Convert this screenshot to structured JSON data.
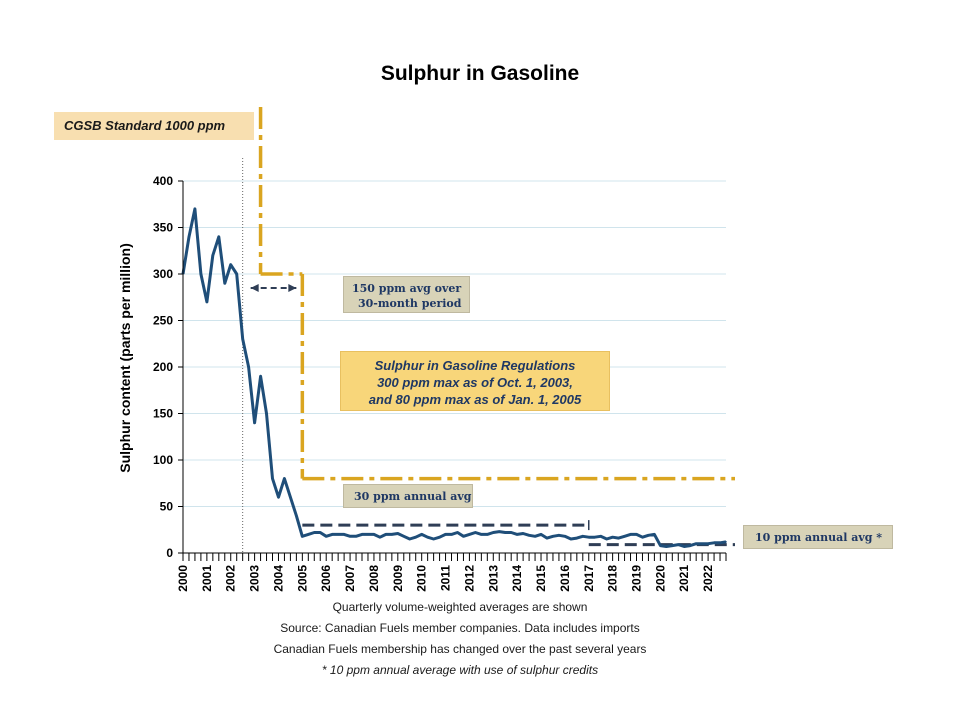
{
  "title": "Sulphur in Gasoline",
  "annotations": {
    "standard": "CGSB Standard 1000 ppm",
    "box150_line1": "150 ppm avg over",
    "box150_line2": "30-month period",
    "regs_line1": "Sulphur in Gasoline Regulations",
    "regs_line2": "300 ppm max as of Oct. 1, 2003,",
    "regs_line3": "and 80 ppm max as of Jan. 1, 2005",
    "avg30": "30 ppm annual avg",
    "avg10": "10 ppm annual avg *"
  },
  "notes": {
    "line1": "Quarterly volume-weighted  averages are shown",
    "line2": "Source: Canadian Fuels member companies. Data includes imports",
    "line3": "Canadian Fuels membership has changed over the past several years",
    "line4": "* 10 ppm annual average with use of sulphur credits"
  },
  "colors": {
    "series": "#1f4e79",
    "limit": "#daa520",
    "target": "#2f3e56",
    "grid": "#d0e4ec",
    "std_box": "#f8dfb0",
    "note_box": "#d8d3b8",
    "regs_box": "#f8d67a"
  },
  "chart_data": {
    "type": "line",
    "title": "Sulphur in Gasoline",
    "ylabel": "Sulphur content (parts per million)",
    "xlabel": "",
    "ylim": [
      0,
      400
    ],
    "yticks": [
      0,
      50,
      100,
      150,
      200,
      250,
      300,
      350,
      400
    ],
    "xlim": [
      2000,
      2022.75
    ],
    "xticks": [
      2000,
      2001,
      2002,
      2003,
      2004,
      2005,
      2006,
      2007,
      2008,
      2009,
      2010,
      2011,
      2012,
      2013,
      2014,
      2015,
      2016,
      2017,
      2018,
      2019,
      2020,
      2021,
      2022
    ],
    "grid": true,
    "series": [
      {
        "name": "",
        "x": [
          2000,
          2000.25,
          2000.5,
          2000.75,
          2001,
          2001.25,
          2001.5,
          2001.75,
          2002,
          2002.25,
          2002.5,
          2002.75,
          2003,
          2003.25,
          2003.5,
          2003.75,
          2004,
          2004.25,
          2004.5,
          2004.75,
          2005,
          2005.25,
          2005.5,
          2005.75,
          2006,
          2006.25,
          2006.5,
          2006.75,
          2007,
          2007.25,
          2007.5,
          2007.75,
          2008,
          2008.25,
          2008.5,
          2008.75,
          2009,
          2009.25,
          2009.5,
          2009.75,
          2010,
          2010.25,
          2010.5,
          2010.75,
          2011,
          2011.25,
          2011.5,
          2011.75,
          2012,
          2012.25,
          2012.5,
          2012.75,
          2013,
          2013.25,
          2013.5,
          2013.75,
          2014,
          2014.25,
          2014.5,
          2014.75,
          2015,
          2015.25,
          2015.5,
          2015.75,
          2016,
          2016.25,
          2016.5,
          2016.75,
          2017,
          2017.25,
          2017.5,
          2017.75,
          2018,
          2018.25,
          2018.5,
          2018.75,
          2019,
          2019.25,
          2019.5,
          2019.75,
          2020,
          2020.25,
          2020.5,
          2020.75,
          2021,
          2021.25,
          2021.5,
          2021.75,
          2022,
          2022.25,
          2022.5,
          2022.75
        ],
        "y": [
          300,
          340,
          370,
          300,
          270,
          320,
          340,
          290,
          310,
          300,
          230,
          200,
          140,
          190,
          150,
          80,
          60,
          80,
          60,
          40,
          18,
          20,
          22,
          22,
          18,
          20,
          20,
          20,
          18,
          18,
          20,
          20,
          20,
          17,
          20,
          20,
          21,
          18,
          15,
          17,
          20,
          17,
          15,
          17,
          20,
          20,
          22,
          18,
          20,
          22,
          20,
          20,
          22,
          23,
          22,
          22,
          20,
          21,
          19,
          18,
          20,
          16,
          18,
          19,
          18,
          15,
          16,
          18,
          17,
          17,
          18,
          15,
          17,
          16,
          18,
          20,
          20,
          17,
          19,
          20,
          8,
          7,
          8,
          9,
          7,
          8,
          10,
          10,
          10,
          11,
          11,
          12
        ]
      }
    ],
    "limits": {
      "max_1000_until": 2003.25,
      "max_300": [
        2003.25,
        2005
      ],
      "max_80_from": 2005,
      "avg_150_span": [
        2002.5,
        2005
      ],
      "avg_30_span": [
        2005,
        2017
      ],
      "avg_10_from": 2017
    }
  }
}
